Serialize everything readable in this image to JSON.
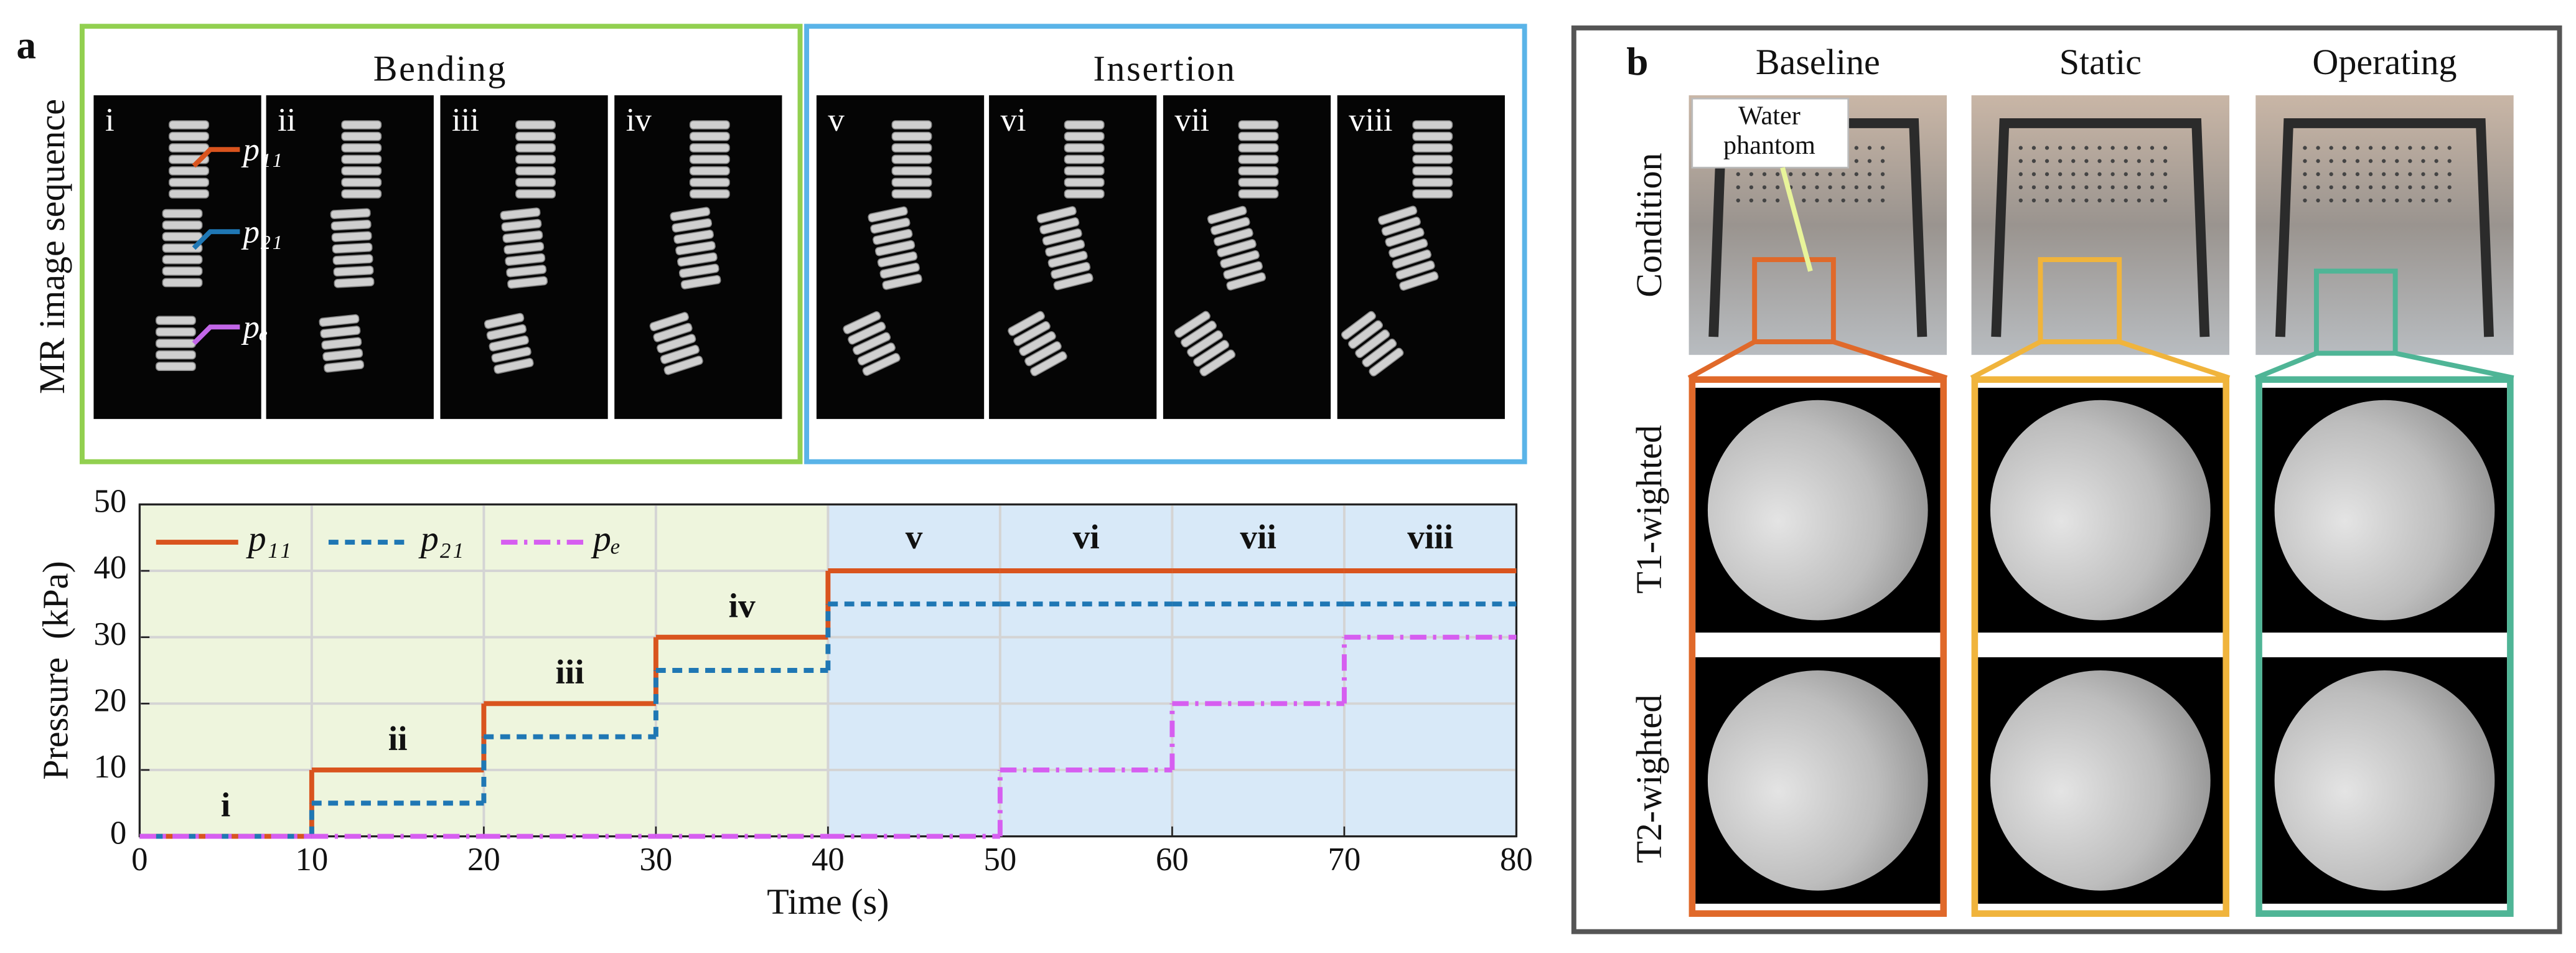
{
  "panel_a": {
    "label": "a",
    "row_label": "MR image sequence",
    "groups": [
      {
        "title": "Bending",
        "color": "#92d050",
        "frames": [
          "i",
          "ii",
          "iii",
          "iv"
        ]
      },
      {
        "title": "Insertion",
        "color": "#5ab4e8",
        "frames": [
          "v",
          "vi",
          "vii",
          "viii"
        ]
      }
    ],
    "callouts": [
      {
        "text": "p₁₁",
        "color": "#d9541e"
      },
      {
        "text": "p₂₁",
        "color": "#1f77b4"
      },
      {
        "text": "pₑ",
        "color": "#c266e8"
      }
    ]
  },
  "chart_data": {
    "type": "line",
    "step": "post",
    "xlabel": "Time (s)",
    "ylabel": "Pressure  (kPa)",
    "x": [
      0,
      10,
      20,
      30,
      40,
      50,
      60,
      70
    ],
    "series": [
      {
        "name": "p₁₁",
        "color": "#d9541e",
        "style": "solid",
        "values": [
          0,
          10,
          20,
          30,
          40,
          40,
          40,
          40
        ]
      },
      {
        "name": "p₂₁",
        "color": "#1f77b4",
        "style": "dashed",
        "values": [
          0,
          5,
          15,
          25,
          35,
          35,
          35,
          35
        ]
      },
      {
        "name": "pₑ",
        "color": "#d65ef0",
        "style": "dashdot",
        "values": [
          0,
          0,
          0,
          0,
          0,
          10,
          20,
          30
        ]
      }
    ],
    "phase_labels": [
      "i",
      "ii",
      "iii",
      "iv",
      "v",
      "vi",
      "vii",
      "viii"
    ],
    "regions": [
      {
        "from": 0,
        "to": 40,
        "color": "#eef5dd"
      },
      {
        "from": 40,
        "to": 80,
        "color": "#d8e9f8"
      }
    ],
    "xlim": [
      0,
      80
    ],
    "xticks": [
      0,
      10,
      20,
      30,
      40,
      50,
      60,
      70,
      80
    ],
    "ylim": [
      0,
      50
    ],
    "yticks": [
      0,
      10,
      20,
      30,
      40,
      50
    ],
    "grid": true,
    "legend": "upper left"
  },
  "panel_b": {
    "label": "b",
    "columns": [
      {
        "title": "Baseline",
        "color": "#e0692a"
      },
      {
        "title": "Static",
        "color": "#f0b43c"
      },
      {
        "title": "Operating",
        "color": "#4fb596"
      }
    ],
    "rows": [
      "Condition",
      "T1-wighted",
      "T2-wighted"
    ],
    "annotation": [
      "Water",
      "phantom"
    ]
  }
}
